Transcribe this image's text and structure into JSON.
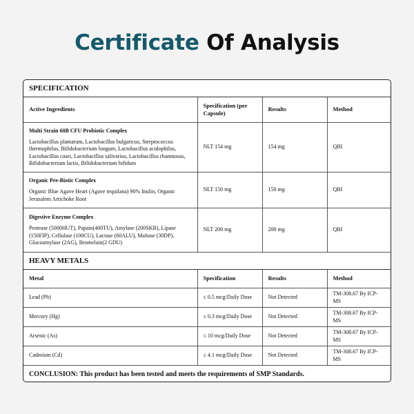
{
  "title": {
    "accent": "Certificate",
    "rest": "Of Analysis",
    "accent_color": "#17596a"
  },
  "specification": {
    "section_label": "SPECIFICATION",
    "columns": [
      "Active Ingredients",
      "Specification (per Capsule)",
      "Results",
      "Method"
    ],
    "rows": [
      {
        "name": "Multi Strain 60B CFU Probiotic Complex",
        "ingredients": "Lactobacillus plantarum, Lactobacillus bulgaricus, Streptococcus thermophilus, Bifidobacterium longum, Lactobacillus acidophilus, Lactobacillus casei, Lactobacillus salivarius, Lactobacillus rhamnosus, Bifidobacterium lactis, Bifidobacterium bifidum",
        "spec": "NLT 154 mg",
        "result": "154 mg",
        "method": "QBI"
      },
      {
        "name": "Organic Pre-Biotic Complex",
        "ingredients": "Organic Blue Agave Heart (Agave tequilana) 90% Inulin, Organic Jerusalem Artichoke Root",
        "spec": "NLT 150 mg",
        "result": "150 mg",
        "method": "QBI"
      },
      {
        "name": "Digestive Enzyme Complex",
        "ingredients": "Protease (5000HUT), Papain(400TU), Amylase (200SKB), Lipase (150FIP), Cellulase (100CU), Lactase (60ALU), Maltase (30DP), Glucoamylase (2AG), Bromelain(2 GDU)",
        "spec": "NLT 200 mg",
        "result": "200 mg",
        "method": "QBI"
      }
    ]
  },
  "heavy_metals": {
    "section_label": "HEAVY METALS",
    "columns": [
      "Metal",
      "Specification",
      "Results",
      "Method"
    ],
    "rows": [
      {
        "metal": "Lead (Pb)",
        "spec": "≤ 0.5 mcg/Daily Dose",
        "result": "Not Detected",
        "method": "TM-308.67 By ICP-MS"
      },
      {
        "metal": "Mercury (Hg)",
        "spec": "≤ 0.3 mcg/Daily Dose",
        "result": "Not Detected",
        "method": "TM-308.67 By ICP-MS"
      },
      {
        "metal": "Arsenic (As)",
        "spec": "≤ 10 mcg/Daily Dose",
        "result": "Not Detected",
        "method": "TM-308.67 By ICP-MS"
      },
      {
        "metal": "Cadmium (Cd)",
        "spec": "≤ 4.1 mcg/Daily Dose",
        "result": "Not Detected",
        "method": "TM-308.67 By ICP-MS"
      }
    ]
  },
  "conclusion": "CONCLUSION: This product has been tested and meets the requirements of SMP Standards."
}
